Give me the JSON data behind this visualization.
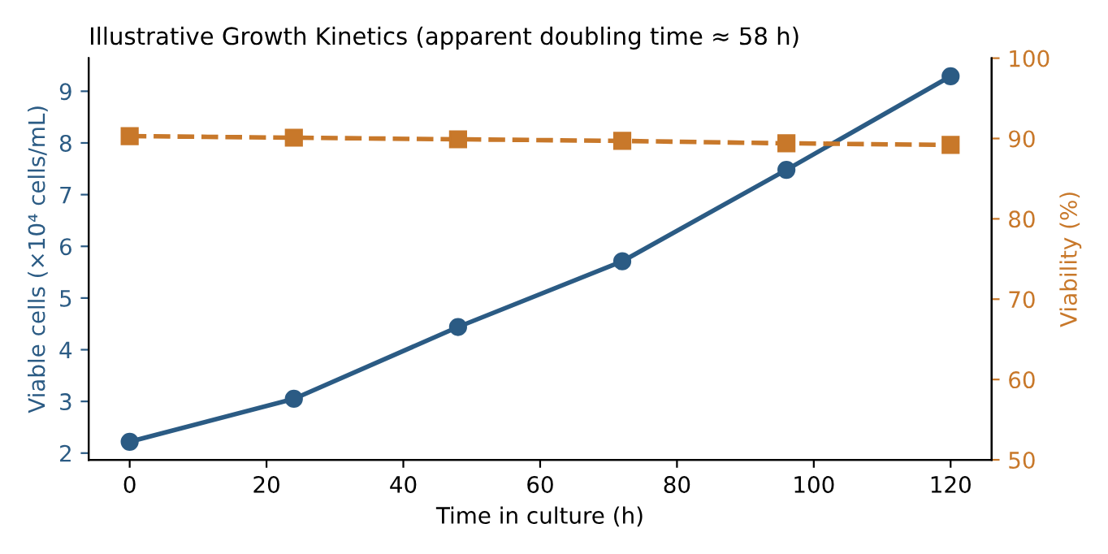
{
  "chart_data": {
    "type": "line",
    "title": "Illustrative Growth Kinetics (apparent doubling time ≈ 58 h)",
    "xlabel": "Time in culture (h)",
    "ylabel": "Viable cells (×10⁴ cells/mL)",
    "y2label": "Viability (%)",
    "x": [
      0,
      24,
      48,
      72,
      96,
      120
    ],
    "series": [
      {
        "color": "#2b5b84",
        "values": [
          2.22,
          3.05,
          4.44,
          5.71,
          7.48,
          9.29
        ],
        "marker": "circle",
        "line_style": "solid"
      },
      {
        "color": "#c8782a",
        "values": [
          90.3,
          90.1,
          89.9,
          89.7,
          89.4,
          89.2
        ],
        "marker": "square",
        "line_style": "dashed",
        "axis": "y2"
      }
    ],
    "xlim": [
      -6,
      126
    ],
    "xticks": [
      0,
      20,
      40,
      60,
      80,
      100,
      120
    ],
    "ylim": [
      1.87,
      9.64
    ],
    "yticks": [
      2,
      3,
      4,
      5,
      6,
      7,
      8,
      9
    ],
    "y2lim": [
      50,
      100
    ],
    "y2ticks": [
      50,
      60,
      70,
      80,
      90,
      100
    ],
    "grid": false,
    "legend": false
  }
}
